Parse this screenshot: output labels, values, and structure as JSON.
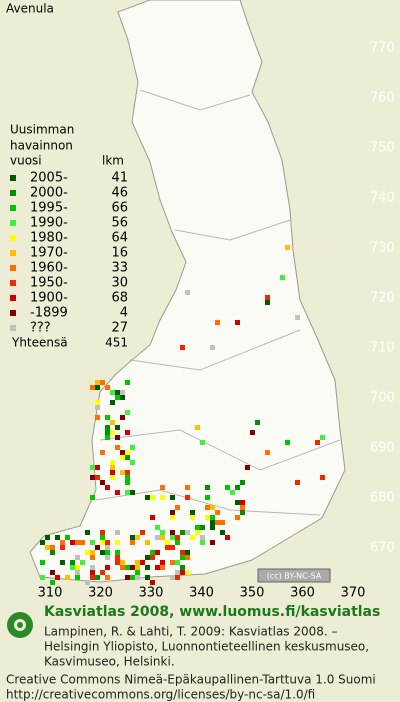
{
  "title": "Avenula",
  "legend": {
    "heading": [
      "Uusimman",
      "havainnon",
      "vuosi"
    ],
    "count_heading": "lkm",
    "items": [
      {
        "label": "2005-",
        "count": 41,
        "color": "#005a00"
      },
      {
        "label": "2000-",
        "count": 46,
        "color": "#009000"
      },
      {
        "label": "1995-",
        "count": 66,
        "color": "#00c800"
      },
      {
        "label": "1990-",
        "count": 56,
        "color": "#40f040"
      },
      {
        "label": "1980-",
        "count": 64,
        "color": "#ffff00"
      },
      {
        "label": "1970-",
        "count": 16,
        "color": "#ffc000"
      },
      {
        "label": "1960-",
        "count": 33,
        "color": "#ff7000"
      },
      {
        "label": "1950-",
        "count": 30,
        "color": "#f02800"
      },
      {
        "label": "1900-",
        "count": 68,
        "color": "#d00000"
      },
      {
        "label": "-1899",
        "count": 4,
        "color": "#800000"
      },
      {
        "label": "???",
        "count": 27,
        "color": "#c0c0c0"
      }
    ],
    "total": {
      "label": "Yhteensä",
      "count": 451
    }
  },
  "grid": {
    "y_labels": [
      770,
      760,
      750,
      740,
      730,
      720,
      710,
      700,
      690,
      680,
      670
    ],
    "x_labels": [
      310,
      320,
      330,
      340,
      350,
      360,
      370
    ]
  },
  "license_badge": "(cc) BY-NC-SA",
  "footer": {
    "title": "Kasviatlas 2008, www.luomus.fi/kasviatlas",
    "citation": [
      "Lampinen, R. & Lahti, T. 2009: Kasviatlas 2008. –",
      "Helsingin Yliopisto, Luonnontieteellinen keskusmuseo,",
      "Kasvimuseo, Helsinki."
    ],
    "license": [
      "Creative Commons Nimeä-Epäkaupallinen-Tarttuva 1.0 Suomi",
      "http://creativecommons.org/licenses/by-nc-sa/1.0/fi"
    ]
  }
}
